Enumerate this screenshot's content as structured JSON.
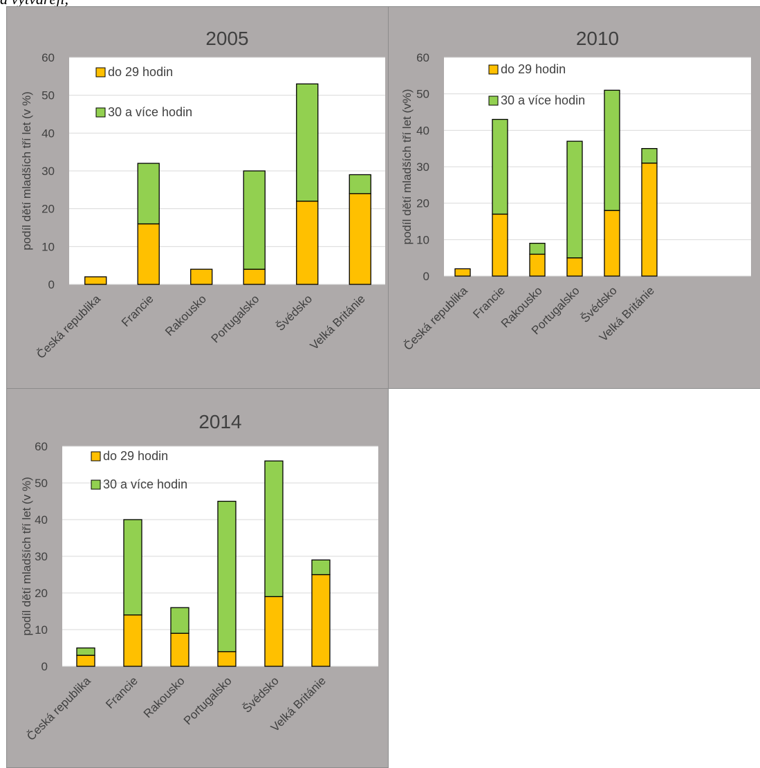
{
  "caption": "a vytvářejí,",
  "colors": {
    "panel_bg": "#aeaaaa",
    "plot_bg": "#ffffff",
    "gridline": "#d9d9d9",
    "series_do29": "#ffc000",
    "series_30plus": "#92d050",
    "bar_outline": "#000000",
    "text": "#404040"
  },
  "chart_data": [
    {
      "type": "bar",
      "stacked": true,
      "title": "2005",
      "ylabel": "podíl dětí mladších tří let (v %)",
      "ylim": [
        0,
        60
      ],
      "yticks": [
        0,
        10,
        20,
        30,
        40,
        50,
        60
      ],
      "grid": true,
      "legend": "top-left",
      "categories": [
        "Česká republika",
        "Francie",
        "Rakousko",
        "Portugalsko",
        "Švédsko",
        "Velká Británie"
      ],
      "series": [
        {
          "name": "do 29 hodin",
          "values": [
            2,
            16,
            4,
            4,
            22,
            24
          ]
        },
        {
          "name": "30 a více hodin",
          "values": [
            0,
            16,
            0,
            26,
            31,
            5
          ]
        }
      ]
    },
    {
      "type": "bar",
      "stacked": true,
      "title": "2010",
      "ylabel": "podíl dětí mladších tří let (v%)",
      "ylim": [
        0,
        60
      ],
      "yticks": [
        0,
        10,
        20,
        30,
        40,
        50,
        60
      ],
      "grid": true,
      "legend": "top-left",
      "categories": [
        "Česká republika",
        "Francie",
        "Rakousko",
        "Portugalsko",
        "Švédsko",
        "Velká Británie"
      ],
      "series": [
        {
          "name": "do 29 hodin",
          "values": [
            2,
            17,
            6,
            5,
            18,
            31
          ]
        },
        {
          "name": "30 a více hodin",
          "values": [
            0,
            26,
            3,
            32,
            33,
            4
          ]
        }
      ]
    },
    {
      "type": "bar",
      "stacked": true,
      "title": "2014",
      "ylabel": "podíl dětí mladších tří let (v %)",
      "ylim": [
        0,
        60
      ],
      "yticks": [
        0,
        10,
        20,
        30,
        40,
        50,
        60
      ],
      "grid": true,
      "legend": "top-left",
      "categories": [
        "Česká republika",
        "Francie",
        "Rakousko",
        "Portugalsko",
        "Švédsko",
        "Velká Británie"
      ],
      "series": [
        {
          "name": "do 29 hodin",
          "values": [
            3,
            14,
            9,
            4,
            19,
            25
          ]
        },
        {
          "name": "30 a více hodin",
          "values": [
            2,
            26,
            7,
            41,
            37,
            4
          ]
        }
      ]
    }
  ]
}
